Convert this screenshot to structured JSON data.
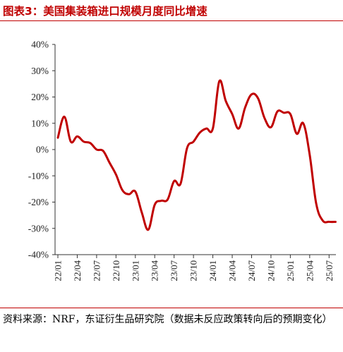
{
  "figure": {
    "title": "图表3：美国集装箱进口规模月度同比增速",
    "source": "资料来源：NRF，东证衍生品研究院（数据未反应政策转向后的预期变化）"
  },
  "colors": {
    "line": "#c00000",
    "axis": "#333333",
    "rule": "#c00000"
  },
  "chart_data": {
    "type": "line",
    "title": "",
    "xlabel": "",
    "ylabel": "",
    "ylim": [
      -40,
      40
    ],
    "y_ticks": [
      "40%",
      "30%",
      "20%",
      "10%",
      "0%",
      "-10%",
      "-20%",
      "-30%",
      "-40%"
    ],
    "y_tick_values": [
      40,
      30,
      20,
      10,
      0,
      -10,
      -20,
      -30,
      -40
    ],
    "x_tick_labels": [
      "22/01",
      "22/04",
      "22/07",
      "22/10",
      "23/01",
      "23/04",
      "23/07",
      "23/10",
      "24/01",
      "24/04",
      "24/07",
      "24/10",
      "25/01",
      "25/04",
      "25/07"
    ],
    "grid": false,
    "legend": "none",
    "x": [
      "22/01",
      "22/02",
      "22/03",
      "22/04",
      "22/05",
      "22/06",
      "22/07",
      "22/08",
      "22/09",
      "22/10",
      "22/11",
      "22/12",
      "23/01",
      "23/02",
      "23/03",
      "23/04",
      "23/05",
      "23/06",
      "23/07",
      "23/08",
      "23/09",
      "23/10",
      "23/11",
      "23/12",
      "24/01",
      "24/02",
      "24/03",
      "24/04",
      "24/05",
      "24/06",
      "24/07",
      "24/08",
      "24/09",
      "24/10",
      "24/11",
      "24/12",
      "25/01",
      "25/02",
      "25/03",
      "25/04",
      "25/05",
      "25/06",
      "25/07",
      "25/08"
    ],
    "series": [
      {
        "values": [
          4.5,
          12.5,
          3.0,
          5.0,
          3.0,
          2.5,
          0.0,
          -0.5,
          -5.0,
          -9.5,
          -15.5,
          -17.0,
          -16.0,
          -24.0,
          -30.5,
          -21.0,
          -19.5,
          -19.0,
          -12.0,
          -13.0,
          0.5,
          3.0,
          6.5,
          8.0,
          8.0,
          26.0,
          18.5,
          13.5,
          8.0,
          16.0,
          21.0,
          19.5,
          12.0,
          8.5,
          14.5,
          14.0,
          13.5,
          6.0,
          10.0,
          -2.0,
          -20.5,
          -27.0,
          -27.5,
          -27.5
        ]
      }
    ]
  }
}
